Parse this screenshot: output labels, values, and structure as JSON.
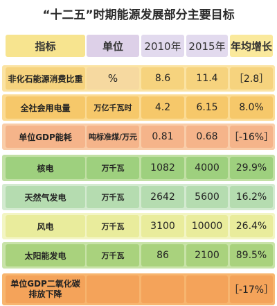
{
  "title": "“十二五”时期能源发展部分主要目标",
  "header": {
    "label": "指标",
    "unit": "单位",
    "y2010": "2010年",
    "y2015": "2015年",
    "growth": "年均增长"
  },
  "rows": [
    {
      "label": "非化石能源消费比重",
      "unit": "%",
      "y2010": "8.6",
      "y2015": "11.4",
      "growth": "［2.8］",
      "color": "#f6d37e",
      "bg": "#fbe3a3"
    },
    {
      "label": "全社会用电量",
      "unit": "万亿千瓦时",
      "y2010": "4.2",
      "y2015": "6.15",
      "growth": "8.0%",
      "color": "#f6c86a",
      "bg": "#fbdb94"
    },
    {
      "label": "单位GDP能耗",
      "unit": "吨标准煤/万元",
      "y2010": "0.81",
      "y2015": "0.68",
      "growth": "［-16%］",
      "color": "#f5b48a",
      "bg": "#f9cda9"
    },
    {
      "label": "核电",
      "unit": "万千瓦",
      "y2010": "1082",
      "y2015": "4000",
      "growth": "29.9%",
      "color": "#9ed07e",
      "bg": "#c2e0a5"
    },
    {
      "label": "天然气发电",
      "unit": "万千瓦",
      "y2010": "2642",
      "y2015": "5600",
      "growth": "16.2%",
      "color": "#b5dcb0",
      "bg": "#d3ead0"
    },
    {
      "label": "风电",
      "unit": "万千瓦",
      "y2010": "3100",
      "y2015": "10000",
      "growth": "26.4%",
      "color": "#e9ec9c",
      "bg": "#f3f5c4"
    },
    {
      "label": "太阳能发电",
      "unit": "万千瓦",
      "y2010": "86",
      "y2015": "2100",
      "growth": "89.5%",
      "color": "#a9d27d",
      "bg": "#c8e3a8"
    },
    {
      "label": "单位GDP二氧化碳排放下降",
      "unit": "",
      "y2010": "",
      "y2015": "",
      "growth": "［-17%］",
      "color": "#f4a35a",
      "bg": "#f7b56f"
    }
  ]
}
